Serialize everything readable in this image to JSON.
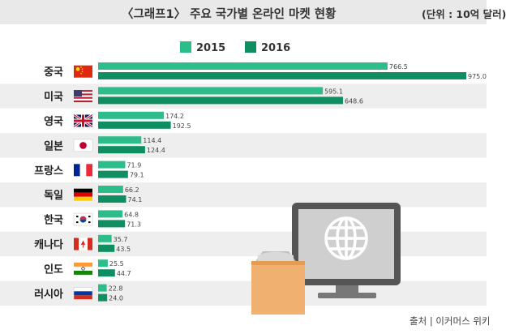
{
  "header": {
    "title": "〈그래프1〉 주요 국가별 온라인 마켓 현황",
    "unit": "(단위 : 10억 달러)"
  },
  "source": "출처 | 이커머스 위키",
  "colors": {
    "series_2015": "#2dbd8a",
    "series_2016": "#0f8f61",
    "row_shade": "#eeeeee",
    "header_bg": "#e9e9e9"
  },
  "chart_data": {
    "type": "bar",
    "orientation": "horizontal",
    "categories": [
      "중국",
      "미국",
      "영국",
      "일본",
      "프랑스",
      "독일",
      "한국",
      "캐나다",
      "인도",
      "러시아"
    ],
    "series": [
      {
        "name": "2015",
        "values": [
          766.5,
          595.1,
          174.2,
          114.4,
          71.9,
          66.2,
          64.8,
          35.7,
          25.5,
          22.8
        ],
        "labels": [
          "766.5",
          "595.1",
          "174.2",
          "114.4",
          "71.9",
          "66.2",
          "64.8",
          "35.7",
          "25.5",
          "22.8"
        ]
      },
      {
        "name": "2016",
        "values": [
          975.0,
          648.6,
          192.5,
          124.4,
          79.1,
          74.1,
          71.3,
          43.5,
          44.7,
          24.0
        ],
        "labels": [
          "975.0",
          "648.6",
          "192.5",
          "124.4",
          "79.1",
          "74.1",
          "71.3",
          "43.5",
          "44.7",
          "24.0"
        ]
      }
    ],
    "flag_icons": [
      "china-flag-icon",
      "usa-flag-icon",
      "uk-flag-icon",
      "japan-flag-icon",
      "france-flag-icon",
      "germany-flag-icon",
      "korea-flag-icon",
      "canada-flag-icon",
      "india-flag-icon",
      "russia-flag-icon"
    ],
    "legend_position": "top",
    "xlim": [
      0,
      975
    ],
    "grid": false
  }
}
